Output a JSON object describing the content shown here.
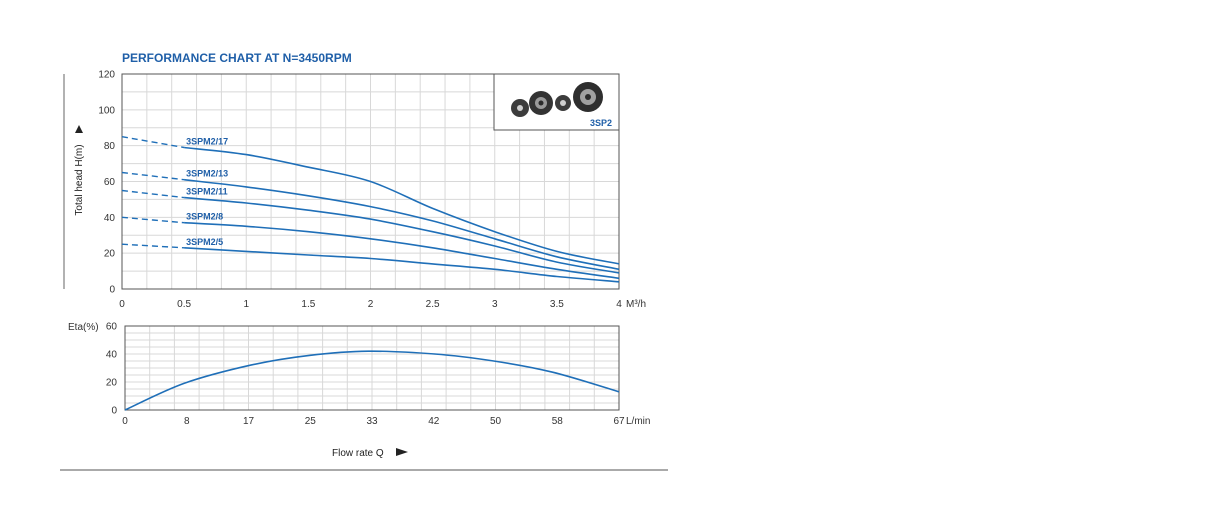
{
  "chart_data": [
    {
      "type": "line",
      "title": "PERFORMANCE CHART AT N=3450RPM",
      "ylabel": "Total head H(m)",
      "x_unit": "M³/h",
      "xlim": [
        0,
        4
      ],
      "ylim": [
        0,
        120
      ],
      "x_ticks": [
        "0",
        "0.5",
        "1",
        "1.5",
        "2",
        "2.5",
        "3",
        "3.5",
        "4"
      ],
      "y_ticks": [
        "0",
        "20",
        "40",
        "60",
        "80",
        "100",
        "120"
      ],
      "grid": true,
      "inset_label": "3SP2",
      "series": [
        {
          "name": "3SPM2/17",
          "dashed_points": [
            [
              0,
              85
            ],
            [
              0.5,
              79
            ]
          ],
          "points": [
            [
              0.5,
              79
            ],
            [
              1,
              75
            ],
            [
              1.5,
              68
            ],
            [
              2,
              60
            ],
            [
              2.5,
              45
            ],
            [
              3,
              32
            ],
            [
              3.5,
              21
            ],
            [
              4,
              14
            ]
          ]
        },
        {
          "name": "3SPM2/13",
          "dashed_points": [
            [
              0,
              65
            ],
            [
              0.5,
              61
            ]
          ],
          "points": [
            [
              0.5,
              61
            ],
            [
              1,
              57
            ],
            [
              1.5,
              52
            ],
            [
              2,
              46
            ],
            [
              2.5,
              38
            ],
            [
              3,
              28
            ],
            [
              3.5,
              18
            ],
            [
              4,
              11
            ]
          ]
        },
        {
          "name": "3SPM2/11",
          "dashed_points": [
            [
              0,
              55
            ],
            [
              0.5,
              51
            ]
          ],
          "points": [
            [
              0.5,
              51
            ],
            [
              1,
              48
            ],
            [
              1.5,
              44
            ],
            [
              2,
              39
            ],
            [
              2.5,
              32
            ],
            [
              3,
              24
            ],
            [
              3.5,
              15
            ],
            [
              4,
              9
            ]
          ]
        },
        {
          "name": "3SPM2/8",
          "dashed_points": [
            [
              0,
              40
            ],
            [
              0.5,
              37
            ]
          ],
          "points": [
            [
              0.5,
              37
            ],
            [
              1,
              35
            ],
            [
              1.5,
              32
            ],
            [
              2,
              28
            ],
            [
              2.5,
              23
            ],
            [
              3,
              17
            ],
            [
              3.5,
              11
            ],
            [
              4,
              6
            ]
          ]
        },
        {
          "name": "3SPM2/5",
          "dashed_points": [
            [
              0,
              25
            ],
            [
              0.5,
              23
            ]
          ],
          "points": [
            [
              0.5,
              23
            ],
            [
              1,
              21
            ],
            [
              1.5,
              19
            ],
            [
              2,
              17
            ],
            [
              2.5,
              14
            ],
            [
              3,
              11
            ],
            [
              3.5,
              7
            ],
            [
              4,
              4
            ]
          ]
        }
      ]
    },
    {
      "type": "line",
      "ylabel": "Eta(%)",
      "xlabel": "Flow rate Q",
      "x_unit": "L/min",
      "xlim": [
        0,
        67
      ],
      "ylim": [
        0,
        60
      ],
      "x_ticks": [
        "0",
        "8",
        "17",
        "25",
        "33",
        "42",
        "50",
        "58",
        "67"
      ],
      "y_ticks": [
        "0",
        "20",
        "40",
        "60"
      ],
      "grid": true,
      "series": [
        {
          "points": [
            [
              0,
              0
            ],
            [
              8,
              19
            ],
            [
              17,
              32
            ],
            [
              25,
              39
            ],
            [
              33,
              42
            ],
            [
              42,
              40
            ],
            [
              50,
              35
            ],
            [
              58,
              27
            ],
            [
              67,
              13
            ]
          ]
        }
      ]
    }
  ]
}
